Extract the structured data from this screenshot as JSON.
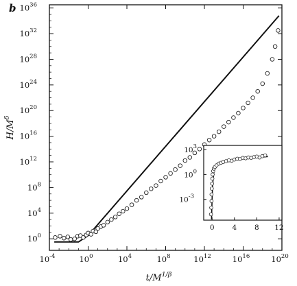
{
  "panel_label": "b",
  "chart_data": [
    {
      "type": "scatter",
      "xlabel": "t/M^{1/β}",
      "ylabel": "H/M^{δ}",
      "xscale": "log",
      "yscale": "log",
      "xlim_log10": [
        -4,
        20
      ],
      "ylim_log10": [
        -1.8,
        36.5
      ],
      "x_ticks": [
        {
          "exp": -4,
          "text": "10",
          "sup": "-4"
        },
        {
          "exp": 0,
          "text": "10",
          "sup": "0"
        },
        {
          "exp": 4,
          "text": "10",
          "sup": "4"
        },
        {
          "exp": 8,
          "text": "10",
          "sup": "8"
        },
        {
          "exp": 12,
          "text": "10",
          "sup": "12"
        },
        {
          "exp": 16,
          "text": "10",
          "sup": "16"
        },
        {
          "exp": 20,
          "text": "10",
          "sup": "20"
        }
      ],
      "y_ticks": [
        {
          "exp": 0,
          "text": "10",
          "sup": "0"
        },
        {
          "exp": 4,
          "text": "10",
          "sup": "4"
        },
        {
          "exp": 8,
          "text": "10",
          "sup": "8"
        },
        {
          "exp": 12,
          "text": "10",
          "sup": "12"
        },
        {
          "exp": 16,
          "text": "10",
          "sup": "16"
        },
        {
          "exp": 20,
          "text": "10",
          "sup": "20"
        },
        {
          "exp": 24,
          "text": "10",
          "sup": "24"
        },
        {
          "exp": 28,
          "text": "10",
          "sup": "28"
        },
        {
          "exp": 32,
          "text": "10",
          "sup": "32"
        },
        {
          "exp": 36,
          "text": "10",
          "sup": "36"
        }
      ],
      "fit_line_log10": [
        [
          -3.5,
          -0.5
        ],
        [
          -1.0,
          -0.5
        ],
        [
          0.0,
          0.5
        ],
        [
          19.7,
          34.8
        ]
      ],
      "points_log10": [
        [
          -3.4,
          0.2
        ],
        [
          -2.9,
          0.4
        ],
        [
          -2.5,
          0.1
        ],
        [
          -2.1,
          0.3
        ],
        [
          -1.8,
          -0.1
        ],
        [
          -1.4,
          0.0
        ],
        [
          -1.1,
          0.4
        ],
        [
          -0.8,
          0.5
        ],
        [
          -0.5,
          0.2
        ],
        [
          -0.2,
          0.6
        ],
        [
          0.0,
          0.9
        ],
        [
          0.3,
          0.7
        ],
        [
          0.5,
          1.2
        ],
        [
          0.8,
          1.1
        ],
        [
          1.0,
          1.6
        ],
        [
          1.3,
          1.9
        ],
        [
          1.6,
          2.1
        ],
        [
          2.0,
          2.6
        ],
        [
          2.4,
          3.0
        ],
        [
          2.8,
          3.4
        ],
        [
          3.2,
          3.9
        ],
        [
          3.6,
          4.3
        ],
        [
          4.0,
          4.7
        ],
        [
          4.5,
          5.3
        ],
        [
          5.0,
          6.0
        ],
        [
          5.5,
          6.5
        ],
        [
          6.0,
          7.2
        ],
        [
          6.5,
          7.8
        ],
        [
          7.0,
          8.3
        ],
        [
          7.5,
          9.0
        ],
        [
          8.0,
          9.6
        ],
        [
          8.5,
          10.2
        ],
        [
          9.0,
          10.8
        ],
        [
          9.5,
          11.4
        ],
        [
          10.0,
          12.2
        ],
        [
          10.5,
          12.7
        ],
        [
          11.0,
          13.4
        ],
        [
          11.5,
          14.0
        ],
        [
          12.0,
          14.7
        ],
        [
          12.5,
          15.4
        ],
        [
          13.0,
          16.0
        ],
        [
          13.5,
          16.7
        ],
        [
          14.0,
          17.5
        ],
        [
          14.5,
          18.2
        ],
        [
          15.0,
          18.9
        ],
        [
          15.5,
          19.6
        ],
        [
          16.0,
          20.4
        ],
        [
          16.5,
          21.2
        ],
        [
          17.0,
          22.0
        ],
        [
          17.5,
          23.0
        ],
        [
          18.0,
          24.2
        ],
        [
          18.5,
          25.8
        ],
        [
          19.0,
          28.0
        ],
        [
          19.3,
          30.0
        ],
        [
          19.6,
          32.5
        ]
      ]
    },
    {
      "type": "scatter",
      "xscale": "linear",
      "yscale": "log",
      "xlim": [
        -1.5,
        12.5
      ],
      "ylim_log10": [
        -5.5,
        3.5
      ],
      "x_ticks": [
        0,
        4,
        8,
        12
      ],
      "y_ticks": [
        {
          "exp": 3,
          "text": "10",
          "sup": "3"
        },
        {
          "exp": 0,
          "text": "10",
          "sup": "0"
        },
        {
          "exp": -3,
          "text": "10",
          "sup": "-3"
        }
      ],
      "fit_curve": [
        [
          -0.1,
          -5.4
        ],
        [
          0.0,
          -3.0
        ],
        [
          0.1,
          -1.2
        ],
        [
          0.3,
          0.3
        ],
        [
          0.6,
          0.9
        ],
        [
          1.0,
          1.25
        ],
        [
          2.0,
          1.55
        ],
        [
          4.0,
          1.8
        ],
        [
          6.0,
          1.95
        ],
        [
          8.0,
          2.05
        ],
        [
          10.0,
          2.15
        ]
      ],
      "points": [
        [
          -0.2,
          -4.8
        ],
        [
          -0.15,
          -4.0
        ],
        [
          -0.1,
          -3.2
        ],
        [
          -0.1,
          -2.4
        ],
        [
          -0.05,
          -1.7
        ],
        [
          0.0,
          -1.1
        ],
        [
          0.05,
          -0.5
        ],
        [
          0.1,
          0.0
        ],
        [
          0.2,
          0.4
        ],
        [
          0.3,
          0.7
        ],
        [
          0.5,
          0.9
        ],
        [
          0.8,
          1.1
        ],
        [
          1.2,
          1.3
        ],
        [
          1.6,
          1.4
        ],
        [
          2.0,
          1.5
        ],
        [
          2.5,
          1.6
        ],
        [
          3.0,
          1.7
        ],
        [
          3.5,
          1.65
        ],
        [
          4.0,
          1.8
        ],
        [
          4.5,
          1.9
        ],
        [
          5.0,
          1.85
        ],
        [
          5.5,
          2.0
        ],
        [
          6.0,
          1.95
        ],
        [
          6.5,
          2.05
        ],
        [
          7.0,
          2.0
        ],
        [
          7.5,
          2.1
        ],
        [
          8.0,
          2.15
        ],
        [
          8.5,
          2.05
        ],
        [
          9.0,
          2.2
        ],
        [
          9.5,
          2.3
        ]
      ]
    }
  ]
}
